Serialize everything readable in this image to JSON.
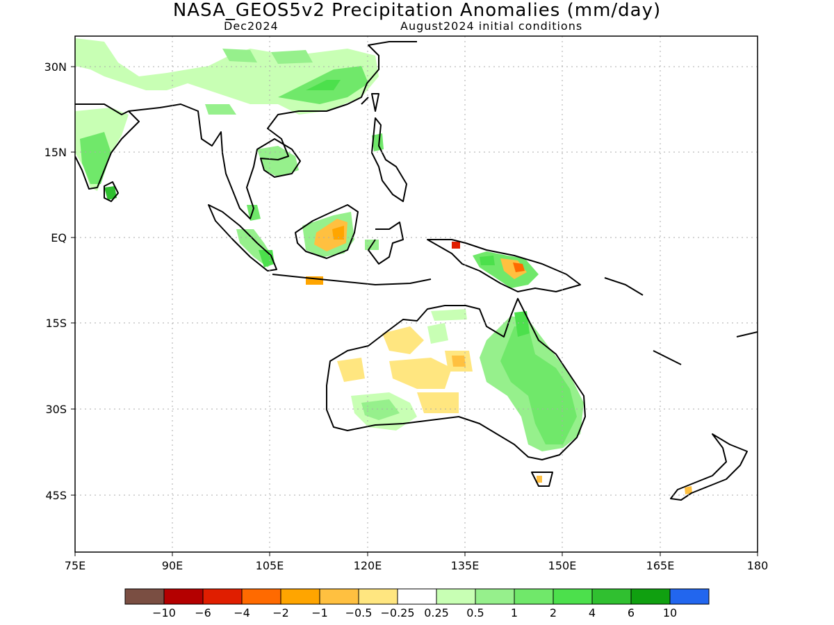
{
  "title": "NASA_GEOS5v2 Precipitation Anomalies (mm/day)",
  "subtitle_left": "Dec2024",
  "subtitle_right": "August2024 initial conditions",
  "axes": {
    "x_ticks": [
      "75E",
      "90E",
      "105E",
      "120E",
      "135E",
      "150E",
      "165E",
      "180"
    ],
    "y_ticks": [
      "30N",
      "15N",
      "EQ",
      "15S",
      "30S",
      "45S"
    ]
  },
  "colorbar": {
    "colors": [
      "#7a4e42",
      "#b40000",
      "#e01e00",
      "#ff6a00",
      "#ffa500",
      "#ffc040",
      "#ffe680",
      "#ffffff",
      "#c8ffb4",
      "#96f08c",
      "#70e86a",
      "#4ce04c",
      "#30c030",
      "#10a010",
      "#2266ee"
    ],
    "labels": [
      "−10",
      "−6",
      "−4",
      "−2",
      "−1",
      "−0.5",
      "−0.25",
      "0.25",
      "0.5",
      "1",
      "2",
      "4",
      "6",
      "10"
    ]
  }
}
